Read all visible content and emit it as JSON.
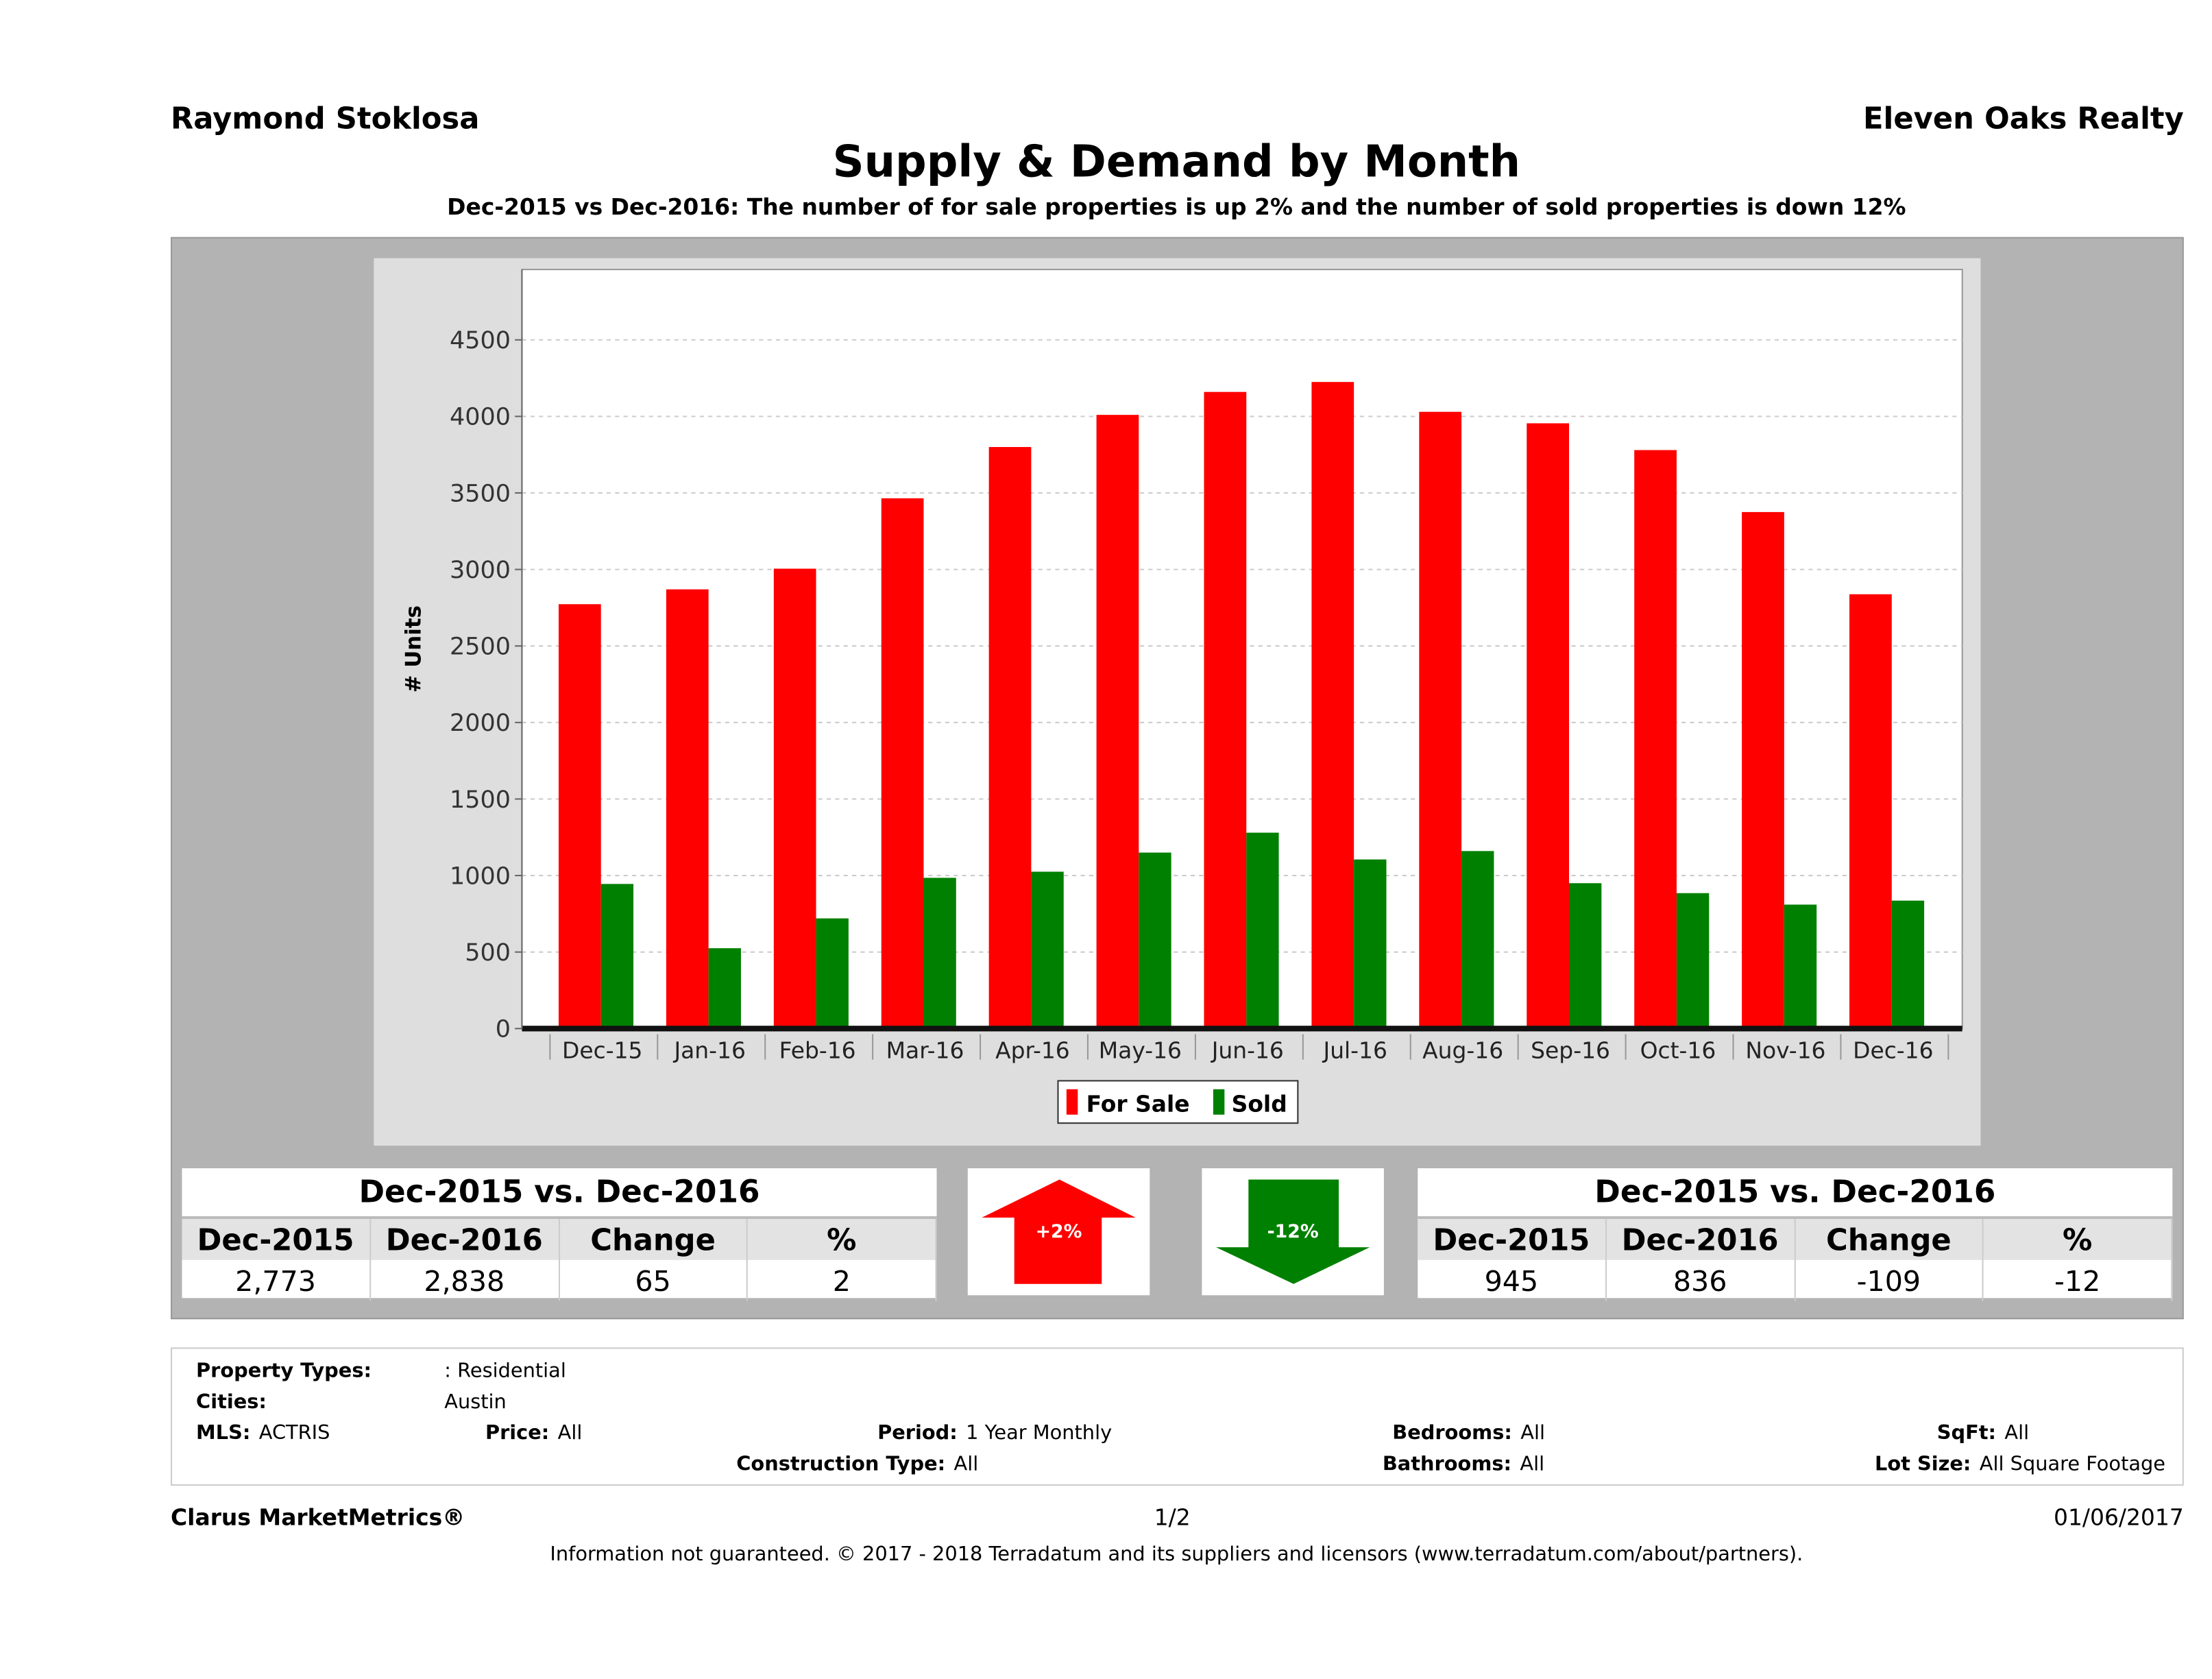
{
  "header": {
    "agent": "Raymond Stoklosa",
    "brokerage": "Eleven Oaks Realty",
    "title": "Supply & Demand by Month",
    "subtitle": "Dec-2015 vs Dec-2016: The number of for sale properties is up 2% and the number of sold properties is down 12%"
  },
  "chart_data": {
    "type": "bar",
    "ylabel": "# Units",
    "xlabel": "",
    "ylim": [
      0,
      4960
    ],
    "yticks": [
      0,
      500,
      1000,
      1500,
      2000,
      2500,
      3000,
      3500,
      4000,
      4500
    ],
    "grid": true,
    "legend_placement": "bottom",
    "categories": [
      "Dec-15",
      "Jan-16",
      "Feb-16",
      "Mar-16",
      "Apr-16",
      "May-16",
      "Jun-16",
      "Jul-16",
      "Aug-16",
      "Sep-16",
      "Oct-16",
      "Nov-16",
      "Dec-16"
    ],
    "series": [
      {
        "name": "For Sale",
        "color": "#ff0000",
        "values": [
          2773,
          2870,
          3005,
          3465,
          3800,
          4010,
          4160,
          4225,
          4030,
          3955,
          3780,
          3375,
          2838
        ]
      },
      {
        "name": "Sold",
        "color": "#008000",
        "values": [
          945,
          525,
          720,
          985,
          1025,
          1150,
          1280,
          1105,
          1160,
          950,
          885,
          810,
          836
        ]
      }
    ]
  },
  "left_table": {
    "title": "Dec-2015 vs. Dec-2016",
    "headers": [
      "Dec-2015",
      "Dec-2016",
      "Change",
      "%"
    ],
    "values": [
      "2,773",
      "2,838",
      "65",
      "2"
    ]
  },
  "right_table": {
    "title": "Dec-2015 vs. Dec-2016",
    "headers": [
      "Dec-2015",
      "Dec-2016",
      "Change",
      "%"
    ],
    "values": [
      "945",
      "836",
      "-109",
      "-12"
    ]
  },
  "arrows": {
    "up_label": "+2%",
    "up_color": "#ff0000",
    "down_label": "-12%",
    "down_color": "#008000"
  },
  "info": {
    "property_types_label": "Property Types:",
    "property_types": ": Residential",
    "cities_label": "Cities:",
    "cities": "Austin",
    "mls_label": "MLS:",
    "mls": "ACTRIS",
    "price_label": "Price:",
    "price": "All",
    "period_label": "Period:",
    "period": "1 Year Monthly",
    "bedrooms_label": "Bedrooms:",
    "bedrooms": "All",
    "sqft_label": "SqFt:",
    "sqft": "All",
    "construction_label": "Construction Type:",
    "construction": "All",
    "bathrooms_label": "Bathrooms:",
    "bathrooms": "All",
    "lot_label": "Lot Size:",
    "lot": "All Square Footage"
  },
  "footer": {
    "brand": "Clarus MarketMetrics®",
    "page": "1/2",
    "date": "01/06/2017",
    "disclaimer": "Information not guaranteed. © 2017 - 2018 Terradatum and its suppliers and licensors (www.terradatum.com/about/partners)."
  }
}
